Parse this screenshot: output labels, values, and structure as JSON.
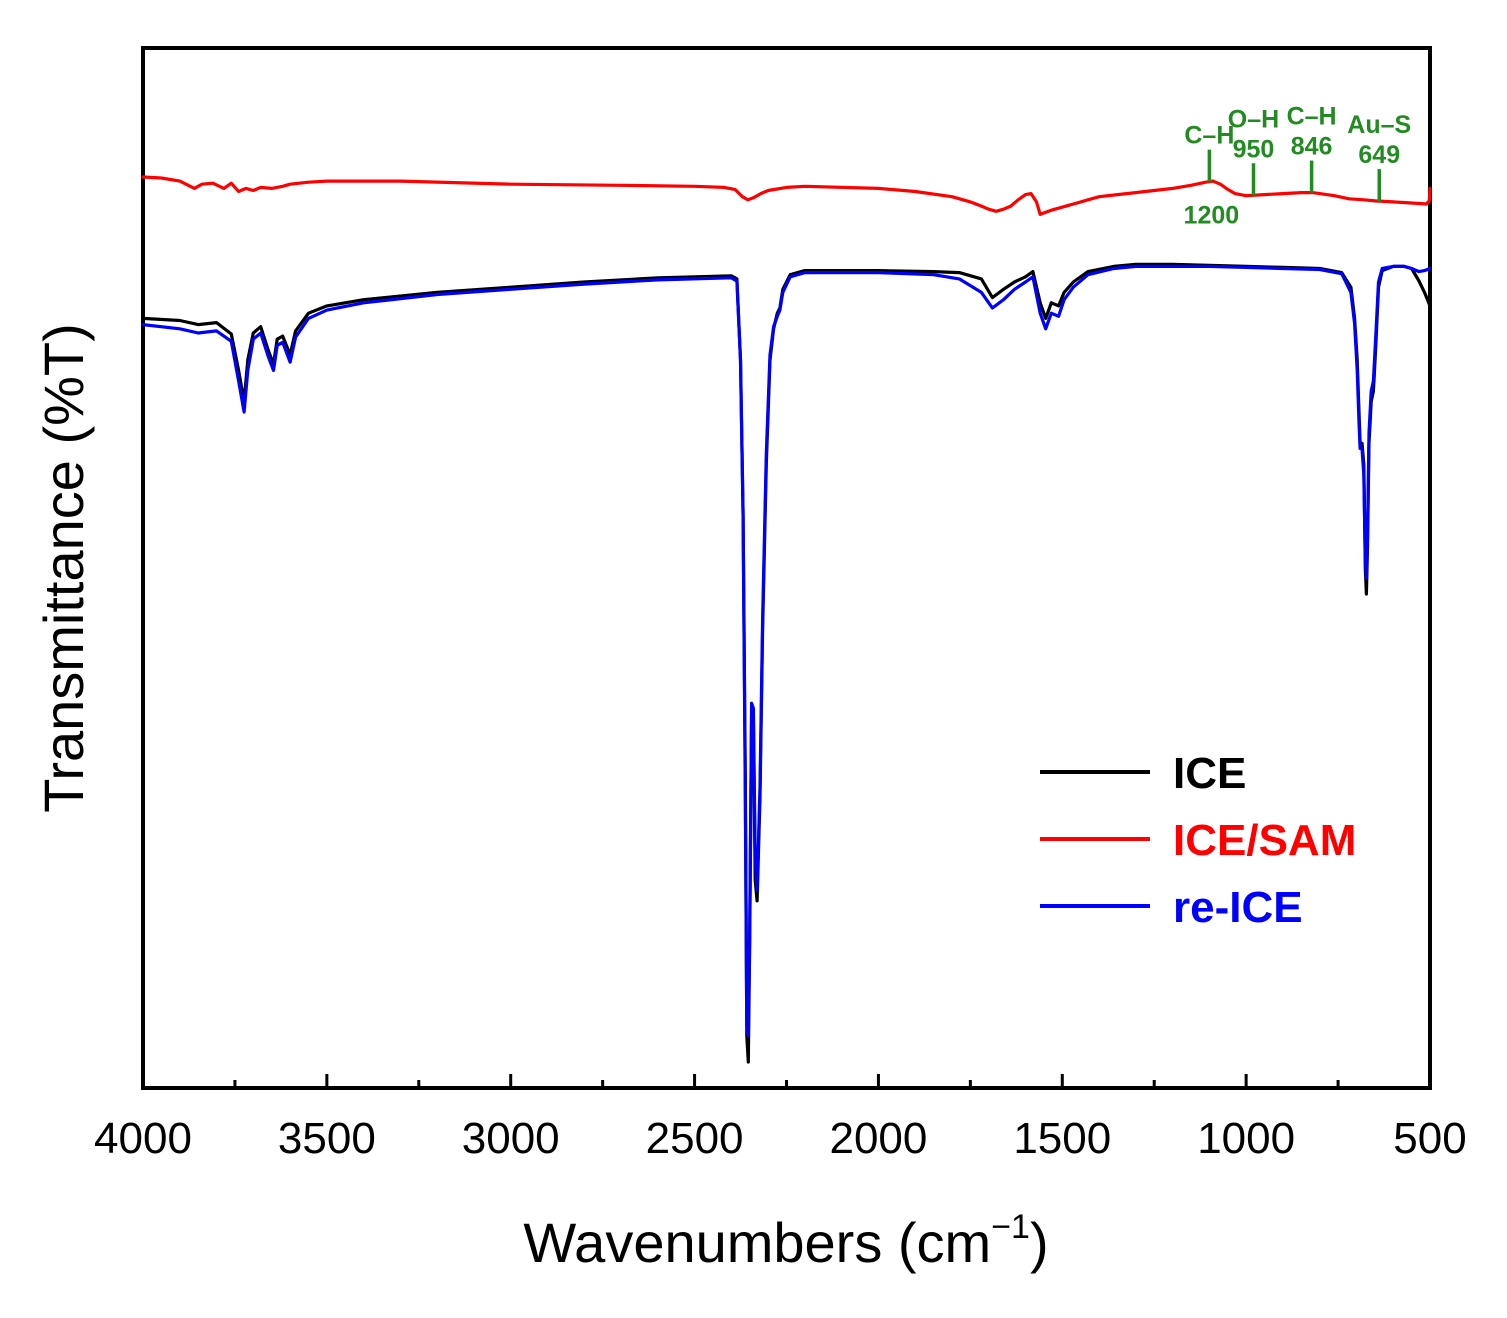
{
  "chart_data": {
    "type": "line",
    "title": "",
    "xlabel": "Wavenumbers (cm",
    "xlabel_sup": "−1",
    "xlabel_close": ")",
    "ylabel": "Transmittance (%T)",
    "xlim": [
      4000,
      500
    ],
    "ylim": [
      0,
      100
    ],
    "x_ticks": [
      4000,
      3500,
      3000,
      2500,
      2000,
      1500,
      1000,
      500
    ],
    "x_tick_labels": [
      "4000",
      "3500",
      "3000",
      "2500",
      "2000",
      "1500",
      "1000",
      "500"
    ],
    "x_minor_ticks": [
      3750,
      3250,
      2750,
      2250,
      1750,
      1250,
      750
    ],
    "y_ticks_shown": false,
    "grid": false,
    "legend_position": "bottom-right",
    "series": [
      {
        "name": "ICE",
        "color": "#000000",
        "points": [
          [
            4000,
            74.0
          ],
          [
            3900,
            73.8
          ],
          [
            3850,
            73.4
          ],
          [
            3800,
            73.6
          ],
          [
            3760,
            72.5
          ],
          [
            3740,
            69.0
          ],
          [
            3725,
            66.0
          ],
          [
            3715,
            70.0
          ],
          [
            3700,
            72.6
          ],
          [
            3680,
            73.2
          ],
          [
            3660,
            71.0
          ],
          [
            3645,
            69.6
          ],
          [
            3635,
            72.0
          ],
          [
            3620,
            72.3
          ],
          [
            3600,
            70.5
          ],
          [
            3585,
            72.8
          ],
          [
            3550,
            74.5
          ],
          [
            3500,
            75.2
          ],
          [
            3400,
            75.8
          ],
          [
            3200,
            76.5
          ],
          [
            3000,
            77.0
          ],
          [
            2800,
            77.5
          ],
          [
            2600,
            77.9
          ],
          [
            2400,
            78.1
          ],
          [
            2385,
            77.8
          ],
          [
            2375,
            70.0
          ],
          [
            2368,
            55.0
          ],
          [
            2362,
            30.0
          ],
          [
            2358,
            5.0
          ],
          [
            2354,
            2.5
          ],
          [
            2350,
            14.0
          ],
          [
            2345,
            36.0
          ],
          [
            2340,
            35.5
          ],
          [
            2335,
            20.0
          ],
          [
            2330,
            18.0
          ],
          [
            2322,
            28.0
          ],
          [
            2315,
            44.0
          ],
          [
            2305,
            60.0
          ],
          [
            2295,
            70.0
          ],
          [
            2285,
            73.0
          ],
          [
            2275,
            74.5
          ],
          [
            2268,
            75.0
          ],
          [
            2260,
            76.8
          ],
          [
            2240,
            78.2
          ],
          [
            2200,
            78.6
          ],
          [
            2000,
            78.6
          ],
          [
            1850,
            78.5
          ],
          [
            1780,
            78.4
          ],
          [
            1720,
            77.8
          ],
          [
            1690,
            76.0
          ],
          [
            1660,
            76.8
          ],
          [
            1630,
            77.5
          ],
          [
            1600,
            78.0
          ],
          [
            1580,
            78.5
          ],
          [
            1560,
            75.5
          ],
          [
            1545,
            74.0
          ],
          [
            1530,
            75.5
          ],
          [
            1510,
            75.2
          ],
          [
            1495,
            76.5
          ],
          [
            1470,
            77.5
          ],
          [
            1430,
            78.5
          ],
          [
            1360,
            79.0
          ],
          [
            1300,
            79.2
          ],
          [
            1200,
            79.2
          ],
          [
            1100,
            79.1
          ],
          [
            1000,
            79.0
          ],
          [
            900,
            78.9
          ],
          [
            800,
            78.8
          ],
          [
            740,
            78.4
          ],
          [
            715,
            77.0
          ],
          [
            705,
            74.0
          ],
          [
            698,
            70.0
          ],
          [
            693,
            65.0
          ],
          [
            690,
            62.0
          ],
          [
            685,
            62.0
          ],
          [
            680,
            60.0
          ],
          [
            676,
            50.0
          ],
          [
            673,
            47.5
          ],
          [
            670,
            52.0
          ],
          [
            666,
            62.0
          ],
          [
            660,
            66.0
          ],
          [
            654,
            67.0
          ],
          [
            648,
            71.0
          ],
          [
            640,
            77.0
          ],
          [
            630,
            78.6
          ],
          [
            600,
            79.0
          ],
          [
            570,
            79.0
          ],
          [
            550,
            78.8
          ],
          [
            530,
            77.6
          ],
          [
            515,
            76.5
          ],
          [
            500,
            75.2
          ]
        ]
      },
      {
        "name": "ICE/SAM",
        "color": "#ff0000",
        "points": [
          [
            4000,
            87.6
          ],
          [
            3950,
            87.5
          ],
          [
            3900,
            87.2
          ],
          [
            3860,
            86.5
          ],
          [
            3840,
            86.9
          ],
          [
            3810,
            87.0
          ],
          [
            3780,
            86.5
          ],
          [
            3760,
            87.0
          ],
          [
            3740,
            86.2
          ],
          [
            3720,
            86.5
          ],
          [
            3700,
            86.3
          ],
          [
            3680,
            86.6
          ],
          [
            3650,
            86.5
          ],
          [
            3620,
            86.7
          ],
          [
            3600,
            86.9
          ],
          [
            3550,
            87.1
          ],
          [
            3500,
            87.2
          ],
          [
            3300,
            87.2
          ],
          [
            3000,
            86.9
          ],
          [
            2700,
            86.8
          ],
          [
            2500,
            86.7
          ],
          [
            2420,
            86.6
          ],
          [
            2390,
            86.4
          ],
          [
            2370,
            85.7
          ],
          [
            2355,
            85.4
          ],
          [
            2340,
            85.6
          ],
          [
            2320,
            86.0
          ],
          [
            2300,
            86.3
          ],
          [
            2250,
            86.6
          ],
          [
            2200,
            86.7
          ],
          [
            2000,
            86.5
          ],
          [
            1900,
            86.2
          ],
          [
            1800,
            85.7
          ],
          [
            1750,
            85.2
          ],
          [
            1720,
            84.8
          ],
          [
            1700,
            84.5
          ],
          [
            1680,
            84.3
          ],
          [
            1660,
            84.5
          ],
          [
            1640,
            84.8
          ],
          [
            1620,
            85.4
          ],
          [
            1600,
            85.9
          ],
          [
            1585,
            86.0
          ],
          [
            1570,
            85.2
          ],
          [
            1560,
            84.0
          ],
          [
            1545,
            84.2
          ],
          [
            1530,
            84.4
          ],
          [
            1510,
            84.6
          ],
          [
            1490,
            84.8
          ],
          [
            1460,
            85.1
          ],
          [
            1430,
            85.4
          ],
          [
            1400,
            85.7
          ],
          [
            1350,
            85.9
          ],
          [
            1300,
            86.1
          ],
          [
            1250,
            86.3
          ],
          [
            1200,
            86.5
          ],
          [
            1150,
            86.8
          ],
          [
            1110,
            87.1
          ],
          [
            1090,
            87.2
          ],
          [
            1070,
            86.9
          ],
          [
            1050,
            86.4
          ],
          [
            1030,
            86.0
          ],
          [
            1000,
            85.8
          ],
          [
            950,
            85.9
          ],
          [
            900,
            86.0
          ],
          [
            850,
            86.1
          ],
          [
            820,
            86.1
          ],
          [
            800,
            86.0
          ],
          [
            760,
            85.8
          ],
          [
            720,
            85.5
          ],
          [
            680,
            85.4
          ],
          [
            649,
            85.3
          ],
          [
            600,
            85.2
          ],
          [
            550,
            85.1
          ],
          [
            510,
            85.0
          ],
          [
            502,
            85.3
          ],
          [
            500,
            86.5
          ]
        ]
      },
      {
        "name": "re-ICE",
        "color": "#0000ff",
        "points": [
          [
            4000,
            73.4
          ],
          [
            3900,
            73.0
          ],
          [
            3850,
            72.6
          ],
          [
            3800,
            72.8
          ],
          [
            3760,
            71.8
          ],
          [
            3740,
            68.0
          ],
          [
            3725,
            65.0
          ],
          [
            3715,
            69.0
          ],
          [
            3700,
            72.0
          ],
          [
            3680,
            72.6
          ],
          [
            3660,
            70.4
          ],
          [
            3645,
            69.0
          ],
          [
            3635,
            71.4
          ],
          [
            3620,
            71.7
          ],
          [
            3600,
            69.8
          ],
          [
            3585,
            72.2
          ],
          [
            3550,
            74.0
          ],
          [
            3500,
            74.8
          ],
          [
            3400,
            75.5
          ],
          [
            3200,
            76.3
          ],
          [
            3000,
            76.8
          ],
          [
            2800,
            77.3
          ],
          [
            2600,
            77.7
          ],
          [
            2400,
            77.9
          ],
          [
            2385,
            77.6
          ],
          [
            2375,
            70.0
          ],
          [
            2368,
            55.0
          ],
          [
            2362,
            28.0
          ],
          [
            2358,
            6.0
          ],
          [
            2354,
            5.0
          ],
          [
            2350,
            15.0
          ],
          [
            2345,
            37.0
          ],
          [
            2340,
            36.5
          ],
          [
            2335,
            22.0
          ],
          [
            2330,
            19.0
          ],
          [
            2322,
            29.0
          ],
          [
            2315,
            45.0
          ],
          [
            2305,
            61.0
          ],
          [
            2295,
            70.5
          ],
          [
            2285,
            73.2
          ],
          [
            2275,
            74.2
          ],
          [
            2268,
            74.8
          ],
          [
            2260,
            76.5
          ],
          [
            2240,
            78.0
          ],
          [
            2200,
            78.4
          ],
          [
            2000,
            78.4
          ],
          [
            1850,
            78.2
          ],
          [
            1780,
            77.8
          ],
          [
            1720,
            76.5
          ],
          [
            1690,
            75.0
          ],
          [
            1660,
            75.8
          ],
          [
            1630,
            76.8
          ],
          [
            1600,
            77.5
          ],
          [
            1580,
            78.0
          ],
          [
            1560,
            74.5
          ],
          [
            1545,
            73.0
          ],
          [
            1530,
            74.5
          ],
          [
            1510,
            74.2
          ],
          [
            1495,
            75.8
          ],
          [
            1470,
            77.0
          ],
          [
            1430,
            78.2
          ],
          [
            1360,
            78.8
          ],
          [
            1300,
            79.0
          ],
          [
            1200,
            79.0
          ],
          [
            1100,
            79.0
          ],
          [
            1000,
            78.9
          ],
          [
            900,
            78.8
          ],
          [
            800,
            78.7
          ],
          [
            740,
            78.3
          ],
          [
            715,
            76.5
          ],
          [
            705,
            73.5
          ],
          [
            698,
            69.0
          ],
          [
            693,
            64.0
          ],
          [
            690,
            61.5
          ],
          [
            685,
            61.5
          ],
          [
            680,
            59.0
          ],
          [
            676,
            51.0
          ],
          [
            673,
            49.0
          ],
          [
            670,
            53.0
          ],
          [
            666,
            63.0
          ],
          [
            660,
            67.0
          ],
          [
            654,
            68.0
          ],
          [
            648,
            72.0
          ],
          [
            640,
            77.5
          ],
          [
            630,
            78.8
          ],
          [
            600,
            79.0
          ],
          [
            570,
            79.0
          ],
          [
            550,
            78.8
          ],
          [
            530,
            78.5
          ],
          [
            515,
            78.6
          ],
          [
            500,
            78.8
          ]
        ]
      }
    ],
    "legend": [
      {
        "label": "ICE",
        "color": "#000000"
      },
      {
        "label": "ICE/SAM",
        "color": "#ff0000"
      },
      {
        "label": "re-ICE",
        "color": "#0000ff"
      }
    ],
    "annotations": [
      {
        "name": "C–H",
        "wavenumber_label": "1200",
        "x": 1100,
        "color": "#228b22",
        "label_position": "split"
      },
      {
        "name": "O–H",
        "wavenumber_label": "950",
        "x": 980,
        "color": "#228b22",
        "label_position": "above"
      },
      {
        "name": "C–H",
        "wavenumber_label": "846",
        "x": 822,
        "color": "#228b22",
        "label_position": "above"
      },
      {
        "name": "Au–S",
        "wavenumber_label": "649",
        "x": 638,
        "color": "#228b22",
        "label_position": "above"
      }
    ]
  }
}
